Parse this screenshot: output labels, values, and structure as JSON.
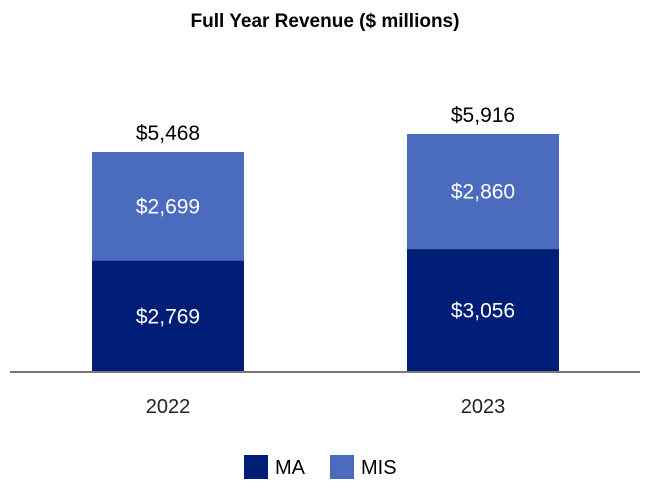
{
  "chart_data": {
    "type": "bar",
    "stacked": true,
    "title": "Full Year Revenue ($ millions)",
    "xlabel": "",
    "ylabel": "",
    "categories": [
      "2022",
      "2023"
    ],
    "series": [
      {
        "name": "MA",
        "values": [
          2769,
          3056
        ],
        "labels": [
          "$2,769",
          "$3,056"
        ],
        "color": "#001E78"
      },
      {
        "name": "MIS",
        "values": [
          2699,
          2860
        ],
        "labels": [
          "$2,699",
          "$2,860"
        ],
        "color": "#4A6BBE"
      }
    ],
    "totals": [
      5468,
      5916
    ],
    "total_labels": [
      "$5,468",
      "$5,916"
    ],
    "ylim": [
      0,
      6500
    ],
    "grid": false,
    "legend": "bottom"
  }
}
